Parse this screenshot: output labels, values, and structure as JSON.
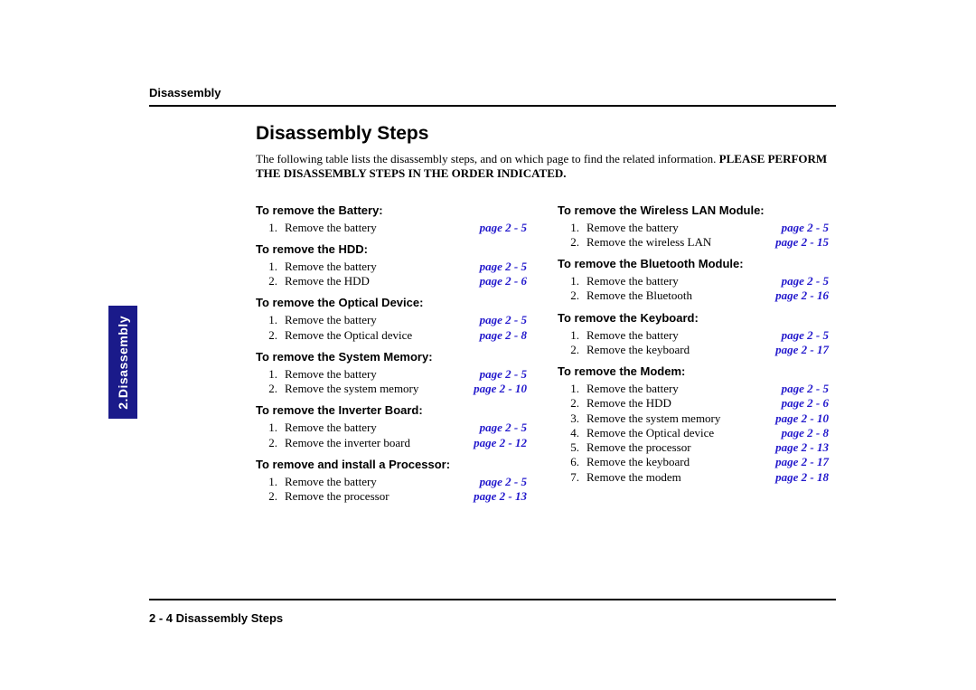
{
  "header_label": "Disassembly",
  "title": "Disassembly Steps",
  "intro_plain": "The following table lists the disassembly steps, and on which page to find the related information. ",
  "intro_bold": "PLEASE PERFORM THE DISASSEMBLY STEPS IN THE ORDER INDICATED.",
  "sidetab": "2.Disassembly",
  "footer": "2  -  4  Disassembly Steps",
  "page_ref_color": "#2218cc",
  "sidetab_bg": "#1a1a8a",
  "sidetab_fg": "#ffffff",
  "left_sections": [
    {
      "title": "To remove the Battery:",
      "steps": [
        {
          "n": "1.",
          "text": "Remove the battery",
          "page": "page 2 - 5"
        }
      ]
    },
    {
      "title": "To remove the HDD:",
      "steps": [
        {
          "n": "1.",
          "text": "Remove the battery",
          "page": "page 2 - 5"
        },
        {
          "n": "2.",
          "text": "Remove the HDD",
          "page": "page 2 - 6"
        }
      ]
    },
    {
      "title": "To remove the Optical Device:",
      "steps": [
        {
          "n": "1.",
          "text": "Remove the battery",
          "page": "page 2 - 5"
        },
        {
          "n": "2.",
          "text": "Remove the Optical device",
          "page": "page 2 - 8"
        }
      ]
    },
    {
      "title": "To remove the System Memory:",
      "steps": [
        {
          "n": "1.",
          "text": "Remove the battery",
          "page": "page 2 - 5"
        },
        {
          "n": "2.",
          "text": "Remove the system memory",
          "page": "page 2 - 10"
        }
      ]
    },
    {
      "title": "To remove the Inverter Board:",
      "steps": [
        {
          "n": "1.",
          "text": "Remove the battery",
          "page": "page 2 - 5"
        },
        {
          "n": "2.",
          "text": "Remove the inverter board",
          "page": "page 2 - 12"
        }
      ]
    },
    {
      "title": "To remove and install a Processor:",
      "steps": [
        {
          "n": "1.",
          "text": "Remove the battery",
          "page": "page 2 - 5"
        },
        {
          "n": "2.",
          "text": "Remove the processor",
          "page": "page 2 - 13"
        }
      ]
    }
  ],
  "right_sections": [
    {
      "title": "To remove the Wireless LAN Module:",
      "steps": [
        {
          "n": "1.",
          "text": "Remove the battery",
          "page": "page 2 - 5"
        },
        {
          "n": "2.",
          "text": "Remove the wireless LAN",
          "page": "page 2 - 15"
        }
      ]
    },
    {
      "title": "To remove the Bluetooth Module:",
      "steps": [
        {
          "n": "1.",
          "text": "Remove the battery",
          "page": "page 2 - 5"
        },
        {
          "n": "2.",
          "text": "Remove the Bluetooth",
          "page": "page 2 - 16"
        }
      ]
    },
    {
      "title": "To remove the Keyboard:",
      "steps": [
        {
          "n": "1.",
          "text": "Remove the battery",
          "page": "page 2 - 5"
        },
        {
          "n": "2.",
          "text": "Remove the keyboard",
          "page": "page 2 - 17"
        }
      ]
    },
    {
      "title": "To remove the Modem:",
      "steps": [
        {
          "n": "1.",
          "text": "Remove the battery",
          "page": "page 2 - 5"
        },
        {
          "n": "2.",
          "text": "Remove the HDD",
          "page": "page 2 - 6"
        },
        {
          "n": "3.",
          "text": "Remove the system memory",
          "page": "page 2 - 10"
        },
        {
          "n": "4.",
          "text": "Remove the Optical device",
          "page": "page 2 - 8"
        },
        {
          "n": "5.",
          "text": "Remove the processor",
          "page": "page 2 - 13"
        },
        {
          "n": "6.",
          "text": "Remove the keyboard",
          "page": "page 2 - 17"
        },
        {
          "n": "7.",
          "text": "Remove the modem",
          "page": "page 2 - 18"
        }
      ]
    }
  ]
}
